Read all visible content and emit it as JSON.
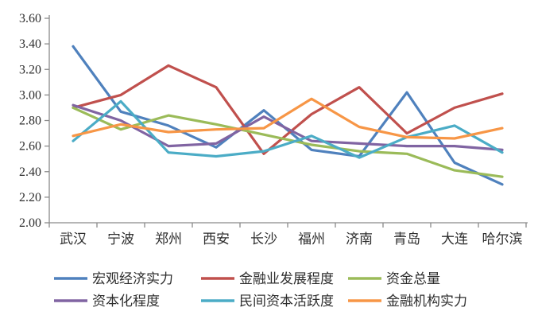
{
  "chart_data": {
    "type": "line",
    "title": "",
    "xlabel": "",
    "ylabel": "",
    "categories": [
      "武汉",
      "宁波",
      "郑州",
      "西安",
      "长沙",
      "福州",
      "济南",
      "青岛",
      "大连",
      "哈尔滨"
    ],
    "series": [
      {
        "name": "宏观经济实力",
        "color": "#4F81BD",
        "values": [
          3.38,
          2.87,
          2.76,
          2.59,
          2.88,
          2.57,
          2.52,
          3.02,
          2.47,
          2.3
        ]
      },
      {
        "name": "金融业发展程度",
        "color": "#C0504D",
        "values": [
          2.9,
          3.0,
          3.23,
          3.06,
          2.54,
          2.85,
          3.06,
          2.7,
          2.9,
          3.01
        ]
      },
      {
        "name": "资金总量",
        "color": "#9BBB59",
        "values": [
          2.9,
          2.73,
          2.84,
          2.77,
          2.69,
          2.61,
          2.56,
          2.54,
          2.41,
          2.36
        ]
      },
      {
        "name": "资本化程度",
        "color": "#8064A2",
        "values": [
          2.92,
          2.8,
          2.6,
          2.62,
          2.83,
          2.64,
          2.62,
          2.6,
          2.6,
          2.57
        ]
      },
      {
        "name": "民间资本活跃度",
        "color": "#4BACC6",
        "values": [
          2.64,
          2.95,
          2.55,
          2.52,
          2.56,
          2.68,
          2.51,
          2.67,
          2.76,
          2.55
        ]
      },
      {
        "name": "金融机构实力",
        "color": "#F79646",
        "values": [
          2.68,
          2.77,
          2.71,
          2.73,
          2.74,
          2.97,
          2.75,
          2.67,
          2.66,
          2.74
        ]
      }
    ],
    "ylim": [
      2.0,
      3.6
    ],
    "ytick_step": 0.2,
    "ytick_labels": [
      "2.00",
      "2.20",
      "2.40",
      "2.60",
      "2.80",
      "3.00",
      "3.20",
      "3.40",
      "3.60"
    ],
    "grid": false,
    "legend_position": "bottom",
    "legend_rows": [
      [
        "宏观经济实力",
        "金融业发展程度",
        "资金总量"
      ],
      [
        "资本化程度",
        "民间资本活跃度",
        "金融机构实力"
      ]
    ],
    "axis_color": "#8a8a8a",
    "text_color": "#2e2e2e"
  }
}
